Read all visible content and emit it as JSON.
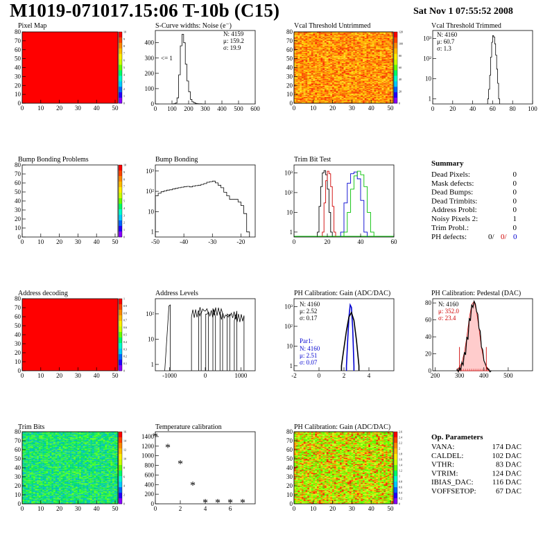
{
  "header": {
    "title": "M1019-071017.15:06 T-10b (C15)",
    "date": "Sat Nov  1 07:55:52 2008"
  },
  "panels": {
    "pixel_map": {
      "title": "Pixel Map",
      "xticks": [
        "0",
        "10",
        "20",
        "30",
        "40",
        "50"
      ],
      "yticks": [
        "0",
        "10",
        "20",
        "30",
        "40",
        "50",
        "60",
        "70",
        "80"
      ],
      "cticks": [
        "0",
        "1",
        "2",
        "3",
        "4",
        "5",
        "6",
        "7",
        "8",
        "9",
        "10"
      ],
      "fill": "#ff0000"
    },
    "scurve": {
      "title": "S-Curve widths: Noise (e⁻)",
      "stats": [
        "N: 4159",
        "μ: 159.2",
        "σ: 19.9"
      ],
      "note": "<= 1",
      "xticks": [
        "0",
        "100",
        "200",
        "300",
        "400",
        "500",
        "600"
      ],
      "yticks": [
        "0",
        "100",
        "200",
        "300",
        "400"
      ]
    },
    "vcal_untrimmed": {
      "title": "Vcal Threshold Untrimmed",
      "xticks": [
        "0",
        "10",
        "20",
        "30",
        "40",
        "50"
      ],
      "yticks": [
        "0",
        "10",
        "20",
        "30",
        "40",
        "50",
        "60",
        "70",
        "80"
      ],
      "cticks": [
        "0",
        "20",
        "40",
        "60",
        "80",
        "100",
        "120"
      ]
    },
    "vcal_trimmed": {
      "title": "Vcal Threshold Trimmed",
      "stats": [
        "N: 4160",
        "μ: 60.7",
        "σ:  1.3"
      ],
      "xticks": [
        "0",
        "20",
        "40",
        "60",
        "80",
        "100"
      ],
      "yticks": [
        "1",
        "10",
        "10²",
        "10³"
      ]
    },
    "bump_problems": {
      "title": "Bump Bonding Problems",
      "xticks": [
        "0",
        "10",
        "20",
        "30",
        "40",
        "50"
      ],
      "yticks": [
        "0",
        "10",
        "20",
        "30",
        "40",
        "50",
        "60",
        "70",
        "80"
      ],
      "cticks": [
        "0",
        "1",
        "2",
        "3",
        "4",
        "5",
        "6",
        "7",
        "8",
        "9",
        "10"
      ]
    },
    "bump_bonding": {
      "title": "Bump Bonding",
      "xticks": [
        "-50",
        "-40",
        "-30",
        "-20"
      ],
      "yticks": [
        "1",
        "10",
        "10²",
        "10³"
      ]
    },
    "trim_bit_test": {
      "title": "Trim Bit Test",
      "xticks": [
        "0",
        "20",
        "40",
        "60"
      ],
      "yticks": [
        "1",
        "10",
        "10²",
        "10³"
      ]
    },
    "summary": {
      "title": "Summary",
      "rows": [
        {
          "label": "Dead Pixels:",
          "value": "0"
        },
        {
          "label": "Mask defects:",
          "value": "0"
        },
        {
          "label": "Dead Bumps:",
          "value": "0"
        },
        {
          "label": "Dead Trimbits:",
          "value": "0"
        },
        {
          "label": "Address Probl:",
          "value": "0"
        },
        {
          "label": "Noisy Pixels 2:",
          "value": "1"
        },
        {
          "label": "Trim Probl.:",
          "value": "0"
        }
      ],
      "ph_label": "PH defects:",
      "ph_values": [
        "0/",
        "0/",
        "0"
      ]
    },
    "address_decoding": {
      "title": "Address decoding",
      "xticks": [
        "0",
        "10",
        "20",
        "30",
        "40",
        "50"
      ],
      "yticks": [
        "0",
        "10",
        "20",
        "30",
        "40",
        "50",
        "60",
        "70",
        "80"
      ],
      "cticks": [
        "0",
        "0.1",
        "0.2",
        "0.3",
        "0.4",
        "0.5",
        "0.6",
        "0.7",
        "0.8",
        "0.9",
        "1"
      ]
    },
    "address_levels": {
      "title": "Address Levels",
      "xticks": [
        "-1000",
        "0",
        "1000"
      ],
      "yticks": [
        "1",
        "10",
        "10²"
      ]
    },
    "ph_gain": {
      "title": "PH Calibration: Gain (ADC/DAC)",
      "stats": [
        "N: 4160",
        "μ: 2.52",
        "σ: 0.17"
      ],
      "par_stats": [
        "Par1:",
        "N: 4160",
        "μ: 2.51",
        "σ: 0.07"
      ],
      "xticks": [
        "-2",
        "0",
        "2",
        "4"
      ],
      "yticks": [
        "1",
        "10",
        "10²",
        "10³"
      ]
    },
    "ph_pedestal": {
      "title": "PH Calibration: Pedestal (DAC)",
      "stats": [
        "N: 4160",
        "μ: 352.0",
        "σ: 23.4"
      ],
      "xticks": [
        "200",
        "300",
        "400",
        "500"
      ],
      "yticks": [
        "0",
        "20",
        "40",
        "60",
        "80"
      ]
    },
    "trim_bits": {
      "title": "Trim Bits",
      "xticks": [
        "0",
        "10",
        "20",
        "30",
        "40",
        "50"
      ],
      "yticks": [
        "0",
        "10",
        "20",
        "30",
        "40",
        "50",
        "60",
        "70",
        "80"
      ],
      "cticks": [
        "0",
        "2",
        "4",
        "6",
        "8",
        "10",
        "12",
        "14",
        "16"
      ]
    },
    "temperature": {
      "title": "Temperature calibration",
      "xticks": [
        "0",
        "2",
        "4",
        "6"
      ],
      "yticks": [
        "0",
        "200",
        "400",
        "600",
        "800",
        "1000",
        "1200",
        "1400"
      ]
    },
    "ph_gain_map": {
      "title": "PH Calibration: Gain (ADC/DAC)",
      "xticks": [
        "0",
        "10",
        "20",
        "30",
        "40",
        "50"
      ],
      "yticks": [
        "0",
        "10",
        "20",
        "30",
        "40",
        "50",
        "60",
        "70",
        "80"
      ],
      "cticks": [
        "0",
        "0.2",
        "0.4",
        "0.6",
        "0.8",
        "1",
        "1.2",
        "1.4",
        "1.6",
        "1.8",
        "2",
        "2.2",
        "2.4",
        "2.6"
      ]
    },
    "op_params": {
      "title": "Op. Parameters",
      "rows": [
        {
          "label": "VANA:",
          "value": "174 DAC"
        },
        {
          "label": "CALDEL:",
          "value": "102 DAC"
        },
        {
          "label": "VTHR:",
          "value": "83 DAC"
        },
        {
          "label": "VTRIM:",
          "value": "124 DAC"
        },
        {
          "label": "IBIAS_DAC:",
          "value": "116 DAC"
        },
        {
          "label": "VOFFSETOP:",
          "value": "67 DAC"
        }
      ]
    }
  },
  "chart_data": [
    {
      "type": "heatmap",
      "title": "Pixel Map",
      "x_range": [
        0,
        52
      ],
      "y_range": [
        0,
        80
      ],
      "z_range": [
        0,
        10
      ],
      "uniform_value": 10
    },
    {
      "type": "bar",
      "title": "S-Curve widths: Noise (e⁻)",
      "x": [
        100,
        110,
        120,
        130,
        140,
        150,
        160,
        170,
        180,
        190,
        200,
        210,
        220,
        230,
        240,
        250,
        260,
        270,
        280,
        290
      ],
      "values": [
        0,
        2,
        6,
        40,
        190,
        380,
        455,
        400,
        260,
        150,
        80,
        30,
        14,
        8,
        4,
        2,
        1,
        1,
        0,
        0
      ],
      "xlim": [
        0,
        600
      ],
      "ylim": [
        0,
        480
      ]
    },
    {
      "type": "heatmap",
      "title": "Vcal Threshold Untrimmed",
      "x_range": [
        0,
        52
      ],
      "y_range": [
        0,
        80
      ],
      "z_range": [
        0,
        130
      ]
    },
    {
      "type": "bar",
      "title": "Vcal Threshold Trimmed",
      "log_y": true,
      "x": [
        55,
        56,
        57,
        58,
        59,
        60,
        61,
        62,
        63,
        64,
        65,
        66
      ],
      "values": [
        1,
        3,
        15,
        120,
        650,
        1400,
        1200,
        550,
        150,
        30,
        6,
        1
      ],
      "xlim": [
        0,
        100
      ]
    },
    {
      "type": "heatmap",
      "title": "Bump Bonding Problems",
      "x_range": [
        0,
        52
      ],
      "y_range": [
        0,
        80
      ],
      "z_range": [
        0,
        10
      ],
      "uniform_value": 0
    },
    {
      "type": "bar",
      "title": "Bump Bonding",
      "log_y": true,
      "x": [
        -50,
        -49,
        -48,
        -47,
        -46,
        -45,
        -44,
        -43,
        -42,
        -41,
        -40,
        -39,
        -38,
        -37,
        -36,
        -35,
        -34,
        -33,
        -32,
        -31,
        -30,
        -29,
        -28,
        -27,
        -26,
        -25,
        -24,
        -23,
        -22,
        -21,
        -20,
        -19,
        -18
      ],
      "values": [
        60,
        80,
        95,
        105,
        115,
        120,
        130,
        140,
        150,
        160,
        170,
        175,
        165,
        180,
        190,
        200,
        220,
        240,
        280,
        300,
        320,
        260,
        200,
        150,
        90,
        60,
        40,
        40,
        40,
        30,
        20,
        8,
        1
      ],
      "xlim": [
        -50,
        -15
      ]
    },
    {
      "type": "line",
      "title": "Trim Bit Test",
      "log_y": true,
      "xlim": [
        0,
        60
      ],
      "series": [
        {
          "color": "#000000",
          "x": [
            14,
            15,
            16,
            17,
            18,
            19,
            20,
            21,
            22
          ],
          "values": [
            1,
            20,
            200,
            1000,
            1300,
            800,
            150,
            10,
            1
          ]
        },
        {
          "color": "#d00000",
          "x": [
            17,
            18,
            19,
            20,
            21,
            22,
            23,
            24
          ],
          "values": [
            1,
            30,
            400,
            1200,
            900,
            200,
            20,
            1
          ]
        },
        {
          "color": "#0000d0",
          "x": [
            28,
            30,
            32,
            34,
            36,
            38,
            40,
            42
          ],
          "values": [
            1,
            30,
            300,
            900,
            1100,
            500,
            40,
            1
          ]
        },
        {
          "color": "#00c000",
          "x": [
            30,
            32,
            34,
            36,
            38,
            40,
            42,
            44,
            46
          ],
          "values": [
            1,
            10,
            150,
            700,
            1200,
            800,
            200,
            10,
            1
          ]
        }
      ]
    },
    {
      "type": "heatmap",
      "title": "Address decoding",
      "x_range": [
        0,
        52
      ],
      "y_range": [
        0,
        80
      ],
      "z_range": [
        0,
        1
      ],
      "uniform_value": 1
    },
    {
      "type": "bar",
      "title": "Address Levels",
      "log_y": true,
      "xlim": [
        -1400,
        1400
      ],
      "x": [
        -1000,
        -250,
        -50,
        150,
        350,
        550,
        750,
        950
      ],
      "values": [
        300,
        150,
        200,
        150,
        180,
        120,
        130,
        100
      ]
    },
    {
      "type": "line",
      "title": "PH Calibration: Gain (ADC/DAC)",
      "log_y": true,
      "xlim": [
        -2,
        6
      ],
      "series": [
        {
          "name": "Par1",
          "color": "#0000d0",
          "x": [
            2.2,
            2.3,
            2.4,
            2.5,
            2.6,
            2.7,
            2.8
          ],
          "values": [
            1,
            20,
            300,
            1200,
            900,
            80,
            1
          ]
        },
        {
          "color": "#000000",
          "x": [
            1.8,
            2.0,
            2.2,
            2.4,
            2.6,
            2.8,
            3.0,
            3.2
          ],
          "values": [
            1,
            8,
            60,
            300,
            500,
            200,
            20,
            1
          ]
        }
      ]
    },
    {
      "type": "bar",
      "title": "PH Calibration: Pedestal (DAC)",
      "xlim": [
        190,
        600
      ],
      "ylim": [
        0,
        85
      ],
      "x": [
        290,
        300,
        310,
        320,
        330,
        340,
        350,
        360,
        370,
        380,
        390,
        400,
        410,
        420
      ],
      "values": [
        2,
        4,
        10,
        22,
        40,
        62,
        78,
        82,
        70,
        50,
        28,
        12,
        5,
        2
      ]
    },
    {
      "type": "heatmap",
      "title": "Trim Bits",
      "x_range": [
        0,
        52
      ],
      "y_range": [
        0,
        80
      ],
      "z_range": [
        0,
        16
      ]
    },
    {
      "type": "scatter",
      "title": "Temperature calibration",
      "x": [
        0,
        1,
        2,
        3,
        4,
        5,
        6,
        7
      ],
      "values": [
        1400,
        1170,
        830,
        380,
        25,
        25,
        25,
        25
      ],
      "xlim": [
        0,
        8
      ],
      "ylim": [
        0,
        1500
      ]
    },
    {
      "type": "heatmap",
      "title": "PH Calibration: Gain (ADC/DAC)",
      "x_range": [
        0,
        52
      ],
      "y_range": [
        0,
        80
      ],
      "z_range": [
        0,
        2.7
      ]
    }
  ]
}
